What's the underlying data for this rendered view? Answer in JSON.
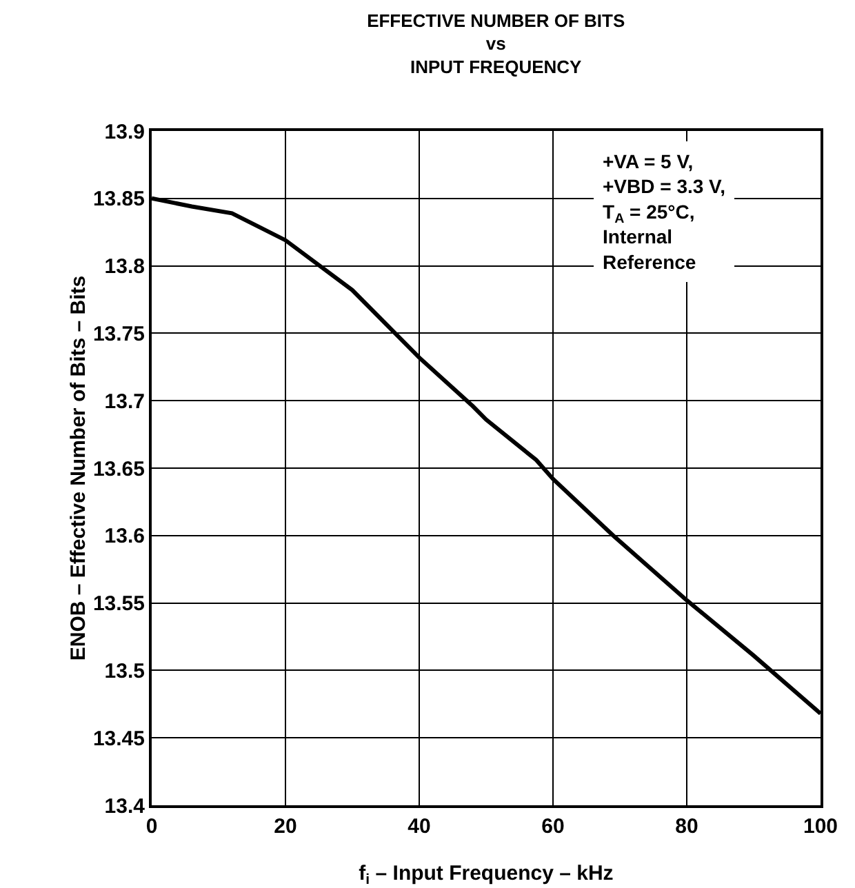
{
  "chart_data": {
    "type": "line",
    "title": "EFFECTIVE NUMBER OF BITS\nvs\nINPUT FREQUENCY",
    "xlabel": "f$_{i}$ – Input Frequency – kHz",
    "ylabel": "ENOB – Effective Number of Bits – Bits",
    "x": [
      0,
      6,
      12,
      16,
      20,
      30,
      40,
      48,
      50,
      57.5,
      60,
      69,
      80,
      90,
      100
    ],
    "series": [
      {
        "color": "#000000",
        "values": [
          13.85,
          13.844,
          13.839,
          13.829,
          13.819,
          13.782,
          13.732,
          13.696,
          13.686,
          13.656,
          13.642,
          13.6,
          13.552,
          13.511,
          13.468
        ]
      }
    ],
    "xlim": [
      0,
      100
    ],
    "xticks": [
      0,
      20,
      40,
      60,
      80,
      100
    ],
    "ylim": [
      13.4,
      13.9
    ],
    "yticks": [
      13.4,
      13.45,
      13.5,
      13.55,
      13.6,
      13.65,
      13.7,
      13.75,
      13.8,
      13.85,
      13.9
    ],
    "grid": true,
    "marker": "none",
    "line_style": "solid",
    "annotations": [
      "+VA = 5 V,\n+VBD = 3.3 V,\nT$_{A}$ = 25°C,\nInternal\nReference"
    ]
  }
}
